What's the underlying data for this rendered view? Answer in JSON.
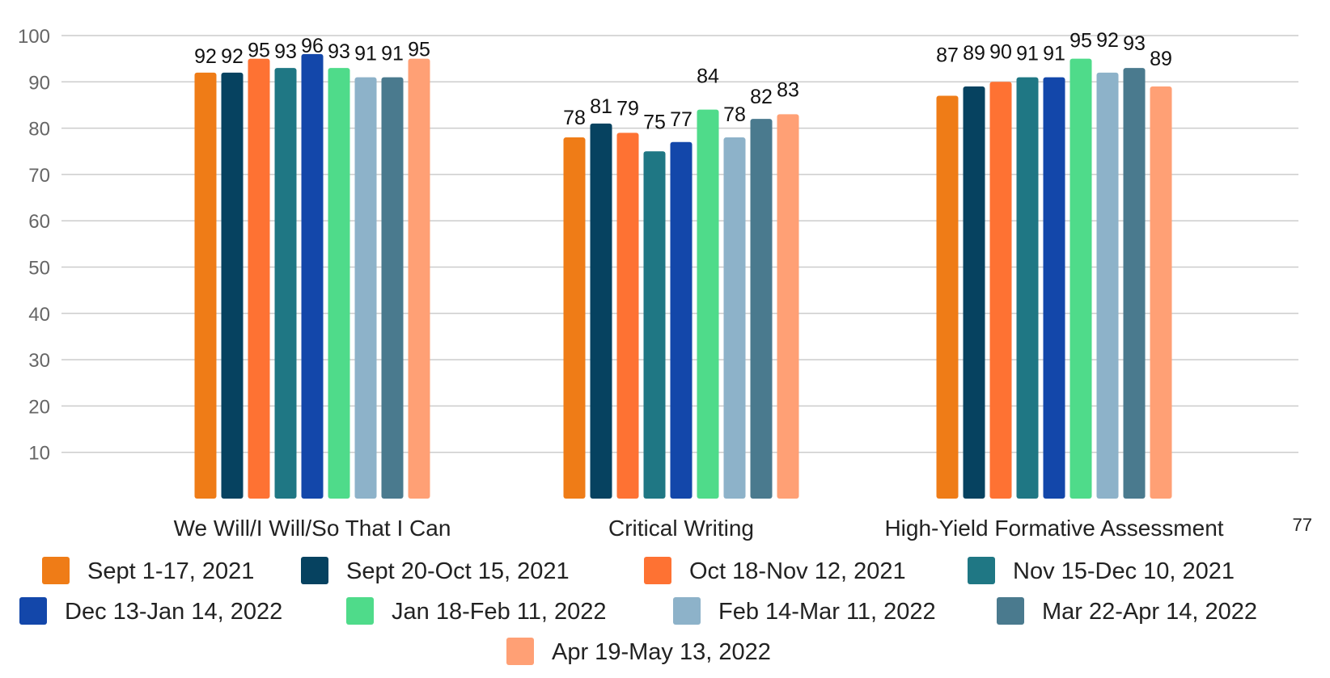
{
  "chart_data": {
    "type": "bar",
    "title": "",
    "xlabel": "",
    "ylabel": "",
    "ylim": [
      0,
      100
    ],
    "yticks": [
      10,
      20,
      30,
      40,
      50,
      60,
      70,
      80,
      90,
      100
    ],
    "grid": true,
    "legend_position": "bottom",
    "categories": [
      "We Will/I Will/So That I Can",
      "Critical Writing",
      "High-Yield Formative Assessment"
    ],
    "series": [
      {
        "name": "Sept 1-17, 2021",
        "color": "#ef7c17",
        "values": [
          92,
          78,
          87
        ]
      },
      {
        "name": "Sept 20-Oct 15, 2021",
        "color": "#064260",
        "values": [
          92,
          81,
          89
        ]
      },
      {
        "name": "Oct 18-Nov 12, 2021",
        "color": "#fe7233",
        "values": [
          95,
          79,
          90
        ]
      },
      {
        "name": "Nov 15-Dec 10, 2021",
        "color": "#1f7784",
        "values": [
          93,
          75,
          91
        ]
      },
      {
        "name": "Dec 13-Jan 14, 2022",
        "color": "#1347aa",
        "values": [
          96,
          77,
          91
        ]
      },
      {
        "name": "Jan 18-Feb 11, 2022",
        "color": "#4fdb8a",
        "values": [
          93,
          84,
          95
        ]
      },
      {
        "name": "Feb 14-Mar 11, 2022",
        "color": "#8db2c9",
        "values": [
          91,
          78,
          92
        ]
      },
      {
        "name": "Mar 22-Apr 14, 2022",
        "color": "#4a7a8e",
        "values": [
          91,
          82,
          93
        ]
      },
      {
        "name": "Apr 19-May 13, 2022",
        "color": "#ffa075",
        "values": [
          95,
          83,
          89
        ]
      }
    ],
    "annotations": [
      "77"
    ]
  }
}
